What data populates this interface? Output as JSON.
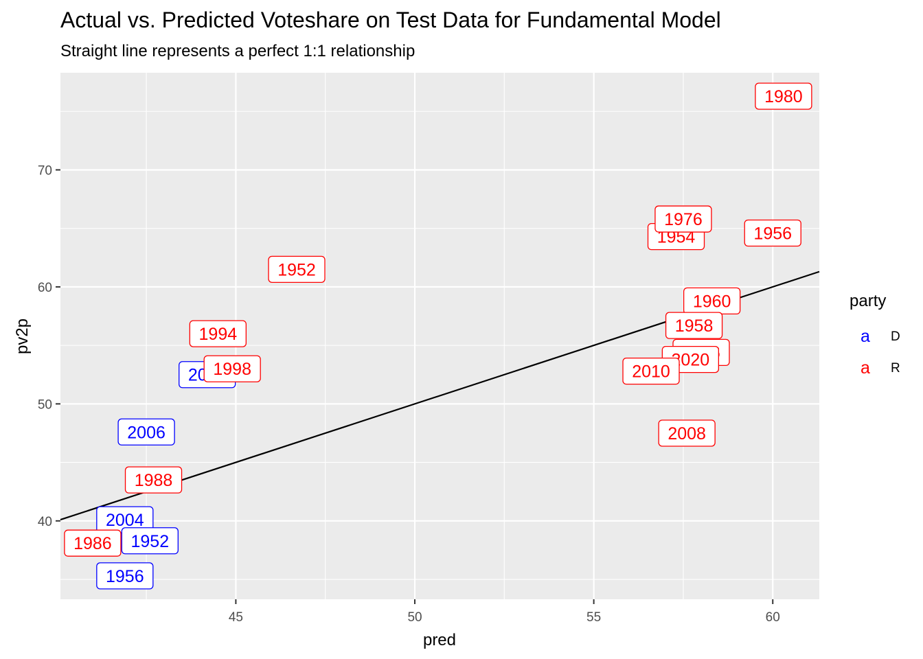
{
  "chart_data": {
    "type": "scatter",
    "title": "Actual vs. Predicted Voteshare on Test Data for Fundamental Model",
    "subtitle": "Straight line represents a perfect 1:1 relationship",
    "xlabel": "pred",
    "ylabel": "pv2p",
    "xlim": [
      40.1,
      61.3
    ],
    "ylim": [
      33.3,
      78.3
    ],
    "x_ticks": [
      45,
      50,
      55,
      60
    ],
    "y_ticks": [
      40,
      50,
      60,
      70
    ],
    "grid": true,
    "reference_line": {
      "slope": 1,
      "intercept": 0
    },
    "legend": {
      "title": "party",
      "position": "right",
      "key_glyph": "a",
      "entries": [
        {
          "name": "D",
          "color": "#0000ff"
        },
        {
          "name": "R",
          "color": "#ff0000"
        }
      ]
    },
    "series": [
      {
        "name": "D",
        "color": "#0000ff",
        "points": [
          {
            "label": "2008",
            "x": 44.2,
            "y": 52.5
          },
          {
            "label": "2006",
            "x": 42.5,
            "y": 47.6
          },
          {
            "label": "2004",
            "x": 41.9,
            "y": 40.1
          },
          {
            "label": "1952",
            "x": 42.6,
            "y": 38.3
          },
          {
            "label": "1956",
            "x": 41.9,
            "y": 35.3
          }
        ]
      },
      {
        "name": "R",
        "color": "#ff0000",
        "points": [
          {
            "label": "1980",
            "x": 60.3,
            "y": 76.3
          },
          {
            "label": "1954",
            "x": 57.3,
            "y": 64.3
          },
          {
            "label": "1976",
            "x": 57.5,
            "y": 65.8
          },
          {
            "label": "1956",
            "x": 60.0,
            "y": 64.6
          },
          {
            "label": "1952",
            "x": 46.7,
            "y": 61.5
          },
          {
            "label": "1960",
            "x": 58.3,
            "y": 58.8
          },
          {
            "label": "1958",
            "x": 57.8,
            "y": 56.7
          },
          {
            "label": "1994",
            "x": 44.5,
            "y": 56.0
          },
          {
            "label": "2016",
            "x": 58.0,
            "y": 54.4
          },
          {
            "label": "2020",
            "x": 57.7,
            "y": 53.8
          },
          {
            "label": "2010",
            "x": 56.6,
            "y": 52.8
          },
          {
            "label": "1998",
            "x": 44.9,
            "y": 53.0
          },
          {
            "label": "2008",
            "x": 57.6,
            "y": 47.5
          },
          {
            "label": "1988",
            "x": 42.7,
            "y": 43.5
          },
          {
            "label": "1986",
            "x": 41.0,
            "y": 38.1
          }
        ]
      }
    ]
  }
}
